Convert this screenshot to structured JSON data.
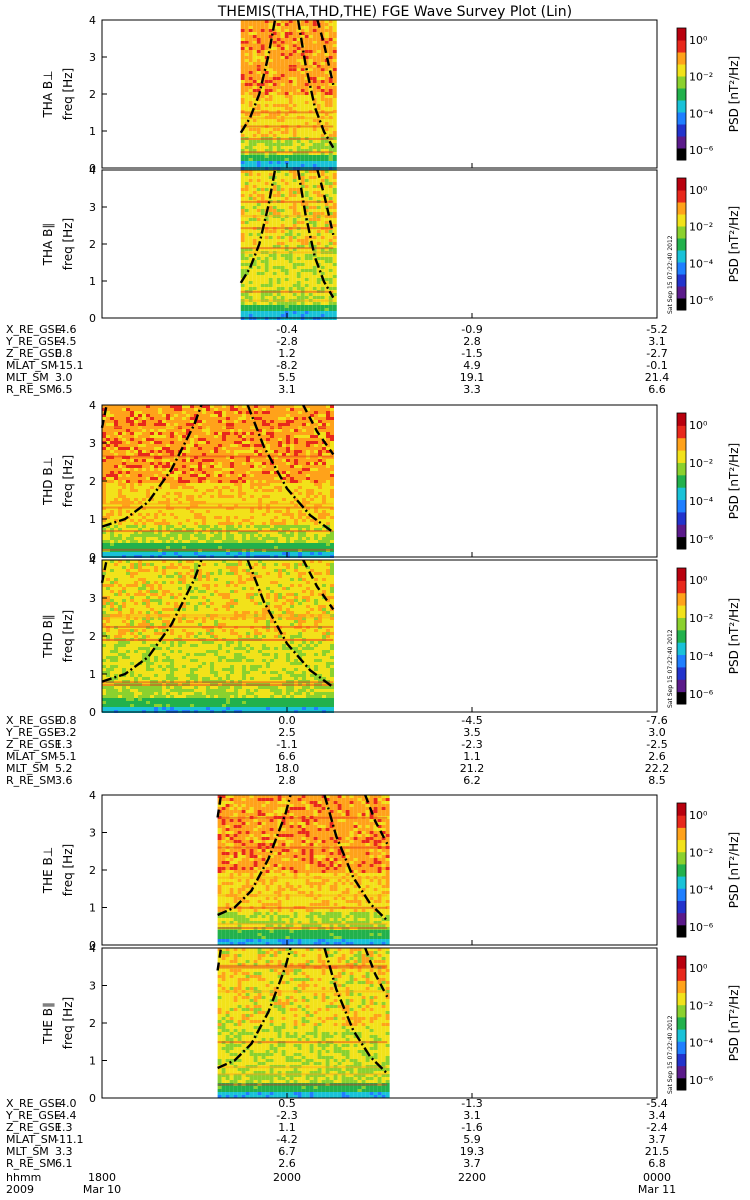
{
  "title": "THEMIS(THA,THD,THE) FGE Wave Survey Plot (Lin)",
  "palette": [
    "#000000",
    "#5a1a8a",
    "#2233cc",
    "#1f7fff",
    "#19c2d8",
    "#22b14c",
    "#8bd12e",
    "#f2e21a",
    "#ffa21a",
    "#e8281c",
    "#b8000e"
  ],
  "colorbar": {
    "label": "PSD [nT²/Hz]",
    "ticks": [
      "10⁰",
      "10⁻²",
      "10⁻⁴",
      "10⁻⁶"
    ]
  },
  "stamp": "Sat Sep 15 07:22:40 2012",
  "y_ticks": [
    "0",
    "1",
    "2",
    "3",
    "4"
  ],
  "chart_data": [
    {
      "type": "heatmap",
      "probe": "THA",
      "ylabels": [
        "THA B⊥",
        "THA B∥"
      ],
      "ylabel2": "freq [Hz]",
      "ylim": [
        0,
        4
      ],
      "data_span": [
        "1930",
        "2030"
      ],
      "curves": {
        "dashdot": [
          [
            0,
            0.95
          ],
          [
            0.1,
            1.35
          ],
          [
            0.2,
            2.0
          ],
          [
            0.3,
            3.05
          ],
          [
            0.37,
            4.0
          ]
        ],
        "dashdot_r": [
          [
            0.62,
            4.0
          ],
          [
            0.7,
            2.8
          ],
          [
            0.8,
            1.65
          ],
          [
            0.9,
            0.98
          ],
          [
            1.0,
            0.55
          ]
        ],
        "dashed": [
          [
            0.83,
            4.0
          ],
          [
            0.9,
            3.35
          ],
          [
            1.0,
            2.25
          ]
        ]
      },
      "ephem": {
        "rows": [
          {
            "label": "X_RE_GSE",
            "values": [
              "-4.6",
              "-0.4",
              "-0.9",
              "-5.2"
            ]
          },
          {
            "label": "Y_RE_GSE",
            "values": [
              "-4.5",
              "-2.8",
              "2.8",
              "3.1"
            ]
          },
          {
            "label": "Z_RE_GSE",
            "values": [
              "0.8",
              "1.2",
              "-1.5",
              "-2.7"
            ]
          },
          {
            "label": "MLAT_SM",
            "values": [
              "-15.1",
              "-8.2",
              "4.9",
              "-0.1"
            ]
          },
          {
            "label": "MLT_SM",
            "values": [
              "3.0",
              "5.5",
              "19.1",
              "21.4"
            ]
          },
          {
            "label": "R_RE_SM",
            "values": [
              "6.5",
              "3.1",
              "3.3",
              "6.6"
            ]
          }
        ]
      }
    },
    {
      "type": "heatmap",
      "probe": "THD",
      "ylabels": [
        "THD B⊥",
        "THD B∥"
      ],
      "ylabel2": "freq [Hz]",
      "ylim": [
        0,
        4
      ],
      "data_span": [
        "1800",
        "2030"
      ],
      "curves": {
        "dashed_l": [
          [
            0,
            3.4
          ],
          [
            0.02,
            4.0
          ]
        ],
        "dashdot": [
          [
            0,
            0.8
          ],
          [
            0.1,
            1.0
          ],
          [
            0.2,
            1.45
          ],
          [
            0.3,
            2.3
          ],
          [
            0.4,
            3.5
          ],
          [
            0.43,
            4.0
          ]
        ],
        "dashdot_r": [
          [
            0.63,
            4.0
          ],
          [
            0.7,
            2.9
          ],
          [
            0.8,
            1.8
          ],
          [
            0.9,
            1.1
          ],
          [
            1.0,
            0.65
          ]
        ],
        "dashed": [
          [
            0.87,
            4.0
          ],
          [
            0.93,
            3.3
          ],
          [
            1.0,
            2.7
          ]
        ]
      },
      "ephem": {
        "rows": [
          {
            "label": "X_RE_GSE",
            "values": [
              "-0.8",
              "0.0",
              "-4.5",
              "-7.6"
            ]
          },
          {
            "label": "Y_RE_GSE",
            "values": [
              "-3.2",
              "2.5",
              "3.5",
              "3.0"
            ]
          },
          {
            "label": "Z_RE_GSE",
            "values": [
              "1.3",
              "-1.1",
              "-2.3",
              "-2.5"
            ]
          },
          {
            "label": "MLAT_SM",
            "values": [
              "-5.1",
              "6.6",
              "1.1",
              "2.6"
            ]
          },
          {
            "label": "MLT_SM",
            "values": [
              "5.2",
              "18.0",
              "21.2",
              "22.2"
            ]
          },
          {
            "label": "R_RE_SM",
            "values": [
              "3.6",
              "2.8",
              "6.2",
              "8.5"
            ]
          }
        ]
      }
    },
    {
      "type": "heatmap",
      "probe": "THE",
      "ylabels": [
        "THE B⊥",
        "THE B∥"
      ],
      "ylabel2": "freq [Hz]",
      "ylim": [
        0,
        4
      ],
      "data_span": [
        "1915",
        "2105"
      ],
      "curves": {
        "dashed_l": [
          [
            0,
            3.4
          ],
          [
            0.02,
            4.0
          ]
        ],
        "dashdot": [
          [
            0,
            0.8
          ],
          [
            0.1,
            1.0
          ],
          [
            0.2,
            1.45
          ],
          [
            0.3,
            2.3
          ],
          [
            0.4,
            3.5
          ],
          [
            0.43,
            4.0
          ]
        ],
        "dashdot_r": [
          [
            0.63,
            4.0
          ],
          [
            0.7,
            2.9
          ],
          [
            0.8,
            1.8
          ],
          [
            0.9,
            1.1
          ],
          [
            1.0,
            0.65
          ]
        ],
        "dashed": [
          [
            0.87,
            4.0
          ],
          [
            0.93,
            3.3
          ],
          [
            1.0,
            2.7
          ]
        ]
      },
      "ephem": {
        "rows": [
          {
            "label": "X_RE_GSE",
            "values": [
              "-4.0",
              "0.5",
              "-1.3",
              "-5.4"
            ]
          },
          {
            "label": "Y_RE_GSE",
            "values": [
              "-4.4",
              "-2.3",
              "3.1",
              "3.4"
            ]
          },
          {
            "label": "Z_RE_GSE",
            "values": [
              "1.3",
              "1.1",
              "-1.6",
              "-2.4"
            ]
          },
          {
            "label": "MLAT_SM",
            "values": [
              "-11.1",
              "-4.2",
              "5.9",
              "3.7"
            ]
          },
          {
            "label": "MLT_SM",
            "values": [
              "3.3",
              "6.7",
              "19.3",
              "21.5"
            ]
          },
          {
            "label": "R_RE_SM",
            "values": [
              "6.1",
              "2.6",
              "3.7",
              "6.8"
            ]
          }
        ]
      }
    }
  ],
  "time_axis": {
    "row_label": "hhmm",
    "ticks": [
      "1800",
      "2000",
      "2200",
      "0000"
    ],
    "date_label": "2009",
    "dates": [
      "Mar 10",
      "Mar 11"
    ]
  }
}
